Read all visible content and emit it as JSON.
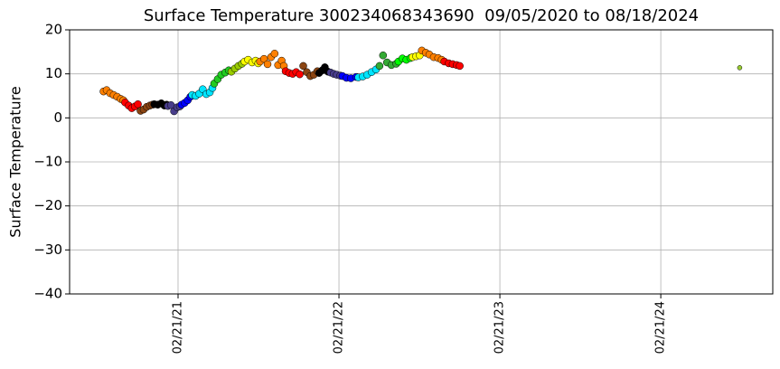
{
  "chart_data": {
    "type": "scatter",
    "title": "Surface Temperature 300234068343690  09/05/2020 to 08/18/2024",
    "y_label": "Surface Temperature",
    "grid": true,
    "xlim": [
      "2020-06-20",
      "2024-11-01"
    ],
    "xticks": [
      {
        "value": "2021-02-21",
        "label": "02/21/21"
      },
      {
        "value": "2022-02-21",
        "label": "02/21/22"
      },
      {
        "value": "2023-02-21",
        "label": "02/21/23"
      },
      {
        "value": "2024-02-21",
        "label": "02/21/24"
      }
    ],
    "ylim": [
      -40,
      20
    ],
    "yticks": [
      {
        "value": -40,
        "label": "−40"
      },
      {
        "value": -30,
        "label": "−30"
      },
      {
        "value": -20,
        "label": "−20"
      },
      {
        "value": -10,
        "label": "−10"
      },
      0,
      10,
      20
    ],
    "series": [
      {
        "color": "#ff8000",
        "x": [
          "2020-09-05",
          "2020-09-12",
          "2020-09-20",
          "2020-09-28",
          "2020-10-06",
          "2020-10-14",
          "2020-10-20"
        ],
        "values": [
          6.0,
          6.3,
          5.6,
          5.2,
          4.8,
          4.3,
          4.0
        ]
      },
      {
        "color": "#ff0000",
        "x": [
          "2020-10-24",
          "2020-11-01",
          "2020-11-08",
          "2020-11-15",
          "2020-11-22"
        ],
        "values": [
          3.5,
          2.8,
          2.2,
          2.6,
          3.1
        ]
      },
      {
        "color": "#8b4513",
        "x": [
          "2020-11-28",
          "2020-12-05",
          "2020-12-12",
          "2020-12-19",
          "2020-12-25"
        ],
        "values": [
          1.6,
          1.9,
          2.5,
          2.8,
          3.0
        ]
      },
      {
        "color": "#000000",
        "x": [
          "2020-12-29",
          "2021-01-06",
          "2021-01-14",
          "2021-01-21",
          "2021-01-26"
        ],
        "values": [
          3.1,
          3.0,
          3.3,
          2.8,
          3.0
        ]
      },
      {
        "color": "#483d8b",
        "x": [
          "2021-01-29",
          "2021-02-05",
          "2021-02-12",
          "2021-02-19",
          "2021-02-25"
        ],
        "values": [
          2.7,
          2.9,
          1.5,
          2.4,
          2.6
        ]
      },
      {
        "color": "#0000ff",
        "x": [
          "2021-03-01",
          "2021-03-08",
          "2021-03-15",
          "2021-03-21"
        ],
        "values": [
          3.0,
          3.4,
          4.0,
          4.8
        ]
      },
      {
        "color": "#00e5ff",
        "x": [
          "2021-03-25",
          "2021-04-02",
          "2021-04-10",
          "2021-04-18",
          "2021-04-26",
          "2021-05-04",
          "2021-05-10"
        ],
        "values": [
          5.2,
          5.0,
          5.5,
          6.5,
          5.4,
          5.8,
          6.8
        ]
      },
      {
        "color": "#22cc22",
        "x": [
          "2021-05-14",
          "2021-05-22",
          "2021-05-30",
          "2021-06-08",
          "2021-06-16"
        ],
        "values": [
          7.8,
          8.8,
          9.8,
          10.3,
          10.8
        ]
      },
      {
        "color": "#99cc00",
        "x": [
          "2021-06-22",
          "2021-06-30",
          "2021-07-08",
          "2021-07-16"
        ],
        "values": [
          10.5,
          11.2,
          11.8,
          12.3
        ]
      },
      {
        "color": "#ffff00",
        "x": [
          "2021-07-22",
          "2021-07-30",
          "2021-08-08",
          "2021-08-16",
          "2021-08-22"
        ],
        "values": [
          12.8,
          13.2,
          12.6,
          13.0,
          12.4
        ]
      },
      {
        "color": "#ff8000",
        "x": [
          "2021-08-26",
          "2021-09-04",
          "2021-09-12",
          "2021-09-20",
          "2021-09-28",
          "2021-10-06",
          "2021-10-14",
          "2021-10-19"
        ],
        "values": [
          12.8,
          13.4,
          12.2,
          13.8,
          14.6,
          12.0,
          13.0,
          11.8
        ]
      },
      {
        "color": "#ff0000",
        "x": [
          "2021-10-23",
          "2021-10-31",
          "2021-11-08",
          "2021-11-16",
          "2021-11-24"
        ],
        "values": [
          10.6,
          10.2,
          10.0,
          10.4,
          9.9
        ]
      },
      {
        "color": "#8b4513",
        "x": [
          "2021-12-02",
          "2021-12-10",
          "2021-12-18",
          "2021-12-26",
          "2022-01-03"
        ],
        "values": [
          11.8,
          10.4,
          9.5,
          9.8,
          10.6
        ]
      },
      {
        "color": "#000000",
        "x": [
          "2022-01-07",
          "2022-01-14",
          "2022-01-20",
          "2022-01-27"
        ],
        "values": [
          10.2,
          10.8,
          11.5,
          10.5
        ]
      },
      {
        "color": "#483d8b",
        "x": [
          "2022-02-02",
          "2022-02-09",
          "2022-02-16",
          "2022-02-24"
        ],
        "values": [
          10.3,
          10.0,
          9.8,
          9.6
        ]
      },
      {
        "color": "#0000ff",
        "x": [
          "2022-03-01",
          "2022-03-10",
          "2022-03-20",
          "2022-04-01"
        ],
        "values": [
          9.5,
          9.1,
          9.0,
          9.3
        ]
      },
      {
        "color": "#00e5ff",
        "x": [
          "2022-04-06",
          "2022-04-16",
          "2022-04-26",
          "2022-05-06",
          "2022-05-16"
        ],
        "values": [
          9.2,
          9.4,
          9.8,
          10.4,
          11.0
        ]
      },
      {
        "color": "#33aa33",
        "x": [
          "2022-05-24",
          "2022-06-01",
          "2022-06-10",
          "2022-06-20",
          "2022-07-01"
        ],
        "values": [
          11.8,
          14.2,
          12.6,
          12.0,
          12.3
        ]
      },
      {
        "color": "#00ff00",
        "x": [
          "2022-07-06",
          "2022-07-15",
          "2022-07-24",
          "2022-08-02"
        ],
        "values": [
          12.8,
          13.5,
          13.2,
          13.6
        ]
      },
      {
        "color": "#ffff00",
        "x": [
          "2022-08-07",
          "2022-08-15",
          "2022-08-23"
        ],
        "values": [
          13.8,
          14.0,
          14.2
        ]
      },
      {
        "color": "#ff8000",
        "x": [
          "2022-08-28",
          "2022-09-06",
          "2022-09-14",
          "2022-09-24",
          "2022-10-04",
          "2022-10-12"
        ],
        "values": [
          15.3,
          14.8,
          14.4,
          13.8,
          13.6,
          13.2
        ]
      },
      {
        "color": "#ff0000",
        "x": [
          "2022-10-18",
          "2022-10-28",
          "2022-11-06",
          "2022-11-15",
          "2022-11-22"
        ],
        "values": [
          12.8,
          12.4,
          12.2,
          12.0,
          11.8
        ]
      },
      {
        "color": "#9acd32",
        "x": [
          "2024-08-18"
        ],
        "values": [
          11.4
        ]
      }
    ]
  }
}
